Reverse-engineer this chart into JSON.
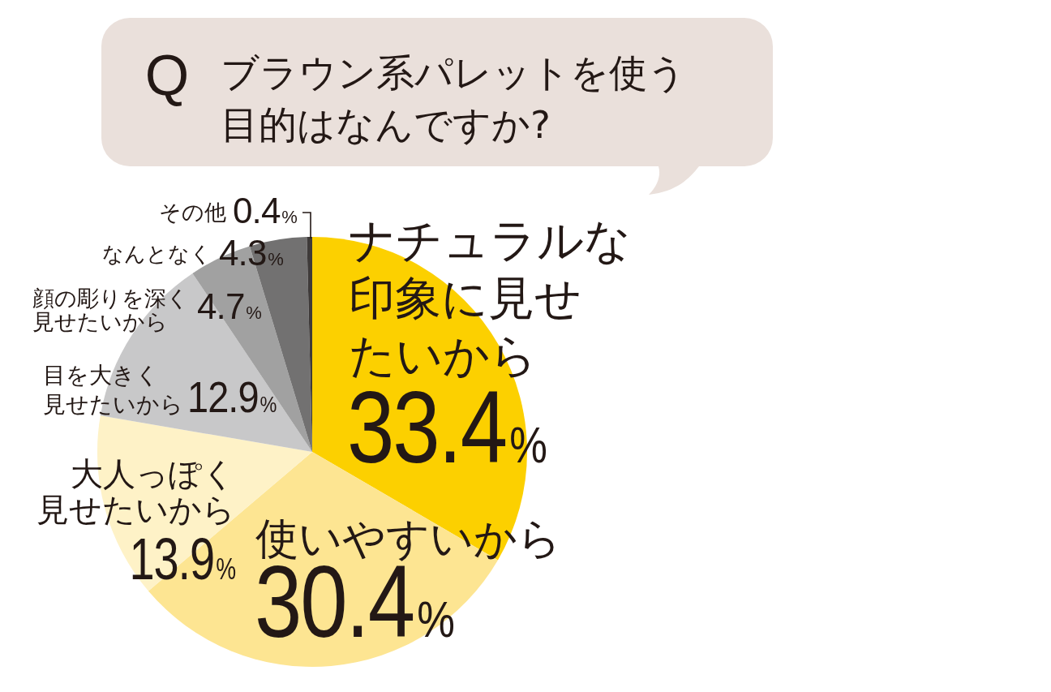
{
  "chart_data": {
    "type": "pie",
    "title": "ブラウン系パレットを使う目的はなんですか?",
    "annotations": [
      "Q"
    ],
    "categories": [
      "ナチュラルな印象に見せたいから",
      "使いやすいから",
      "大人っぽく見せたいから",
      "目を大きく見せたいから",
      "顔の彫りを深く見せたいから",
      "なんとなく",
      "その他"
    ],
    "values": [
      33.4,
      30.4,
      13.9,
      12.9,
      4.7,
      4.3,
      0.4
    ],
    "value_labels": [
      "33.4%",
      "30.4%",
      "13.9%",
      "12.9%",
      "4.7%",
      "4.3%",
      "0.4%"
    ],
    "colors": [
      "#fcd000",
      "#fde592",
      "#fef2c7",
      "#c8c8c9",
      "#a1a1a1",
      "#727171",
      "#3e3a39"
    ]
  }
}
